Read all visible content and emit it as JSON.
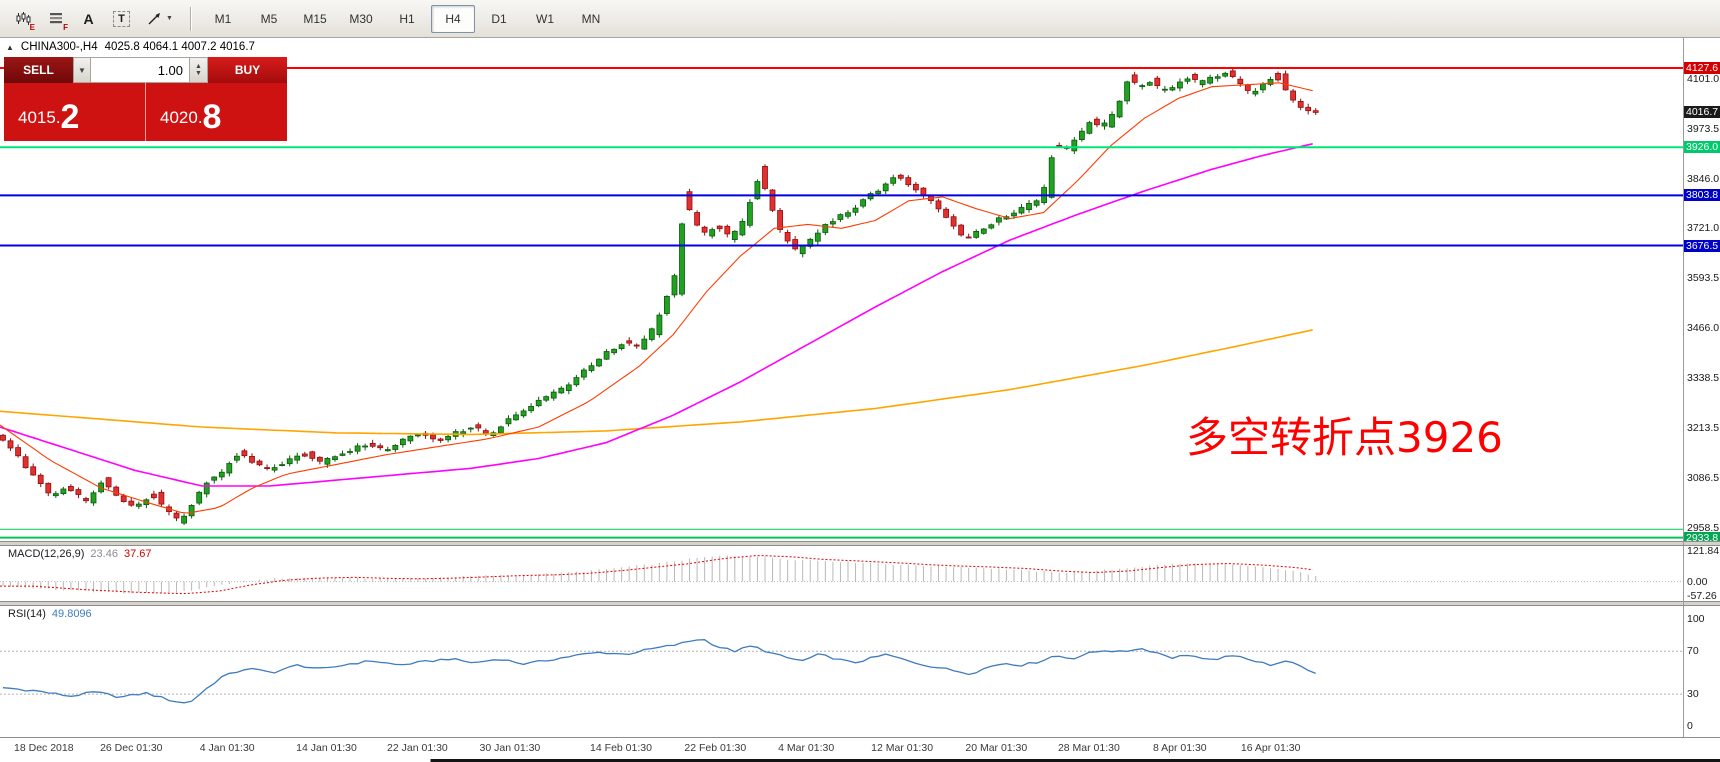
{
  "toolbar": {
    "timeframes": [
      "M1",
      "M5",
      "M15",
      "M30",
      "H1",
      "H4",
      "D1",
      "W1",
      "MN"
    ],
    "active_timeframe": "H4",
    "tool_icons": [
      {
        "name": "candlestick-tool-icon",
        "sub": "E"
      },
      {
        "name": "grid-tool-icon",
        "sub": "F"
      },
      {
        "name": "font-tool-icon",
        "label": "A"
      },
      {
        "name": "text-label-tool-icon",
        "label": "T"
      },
      {
        "name": "trendline-tool-icon",
        "caret": "▼"
      }
    ]
  },
  "icons": {
    "collapse_arrow": "▲",
    "dropdown_caret": "▼",
    "spinner_up": "▲",
    "spinner_down": "▼"
  },
  "header": {
    "symbol_period": "CHINA300-,H4",
    "ohlc_text": "4025.8 4064.1 4007.2 4016.7"
  },
  "trade_widget": {
    "sell_label": "SELL",
    "buy_label": "BUY",
    "volume": "1.00",
    "bid": "4015.2",
    "ask": "4020.8",
    "bid_main": "4015.",
    "bid_big": "2",
    "ask_main": "4020.",
    "ask_big": "8"
  },
  "chart_data": {
    "type": "candlestick",
    "symbol": "CHINA300-",
    "timeframe": "H4",
    "ohlc": {
      "open": 4025.8,
      "high": 4064.1,
      "low": 4007.2,
      "close": 4016.7
    },
    "annotations": [
      {
        "text": "多空转折点3926",
        "color": "#FF0000"
      }
    ],
    "price_axis": {
      "min": 2930,
      "max": 4160,
      "gridline_labels": [
        4101.0,
        3973.5,
        3846.0,
        3721.0,
        3593.5,
        3466.0,
        3338.5,
        3213.5,
        3086.5,
        2958.5
      ],
      "tags": [
        {
          "price": 4127.6,
          "label": "4127.6",
          "color": "#D40000"
        },
        {
          "price": 4016.7,
          "label": "4016.7",
          "color": "#1A1A1A"
        },
        {
          "price": 3926.0,
          "label": "3926.0",
          "color": "#00C96B"
        },
        {
          "price": 3803.8,
          "label": "3803.8",
          "color": "#0000C8"
        },
        {
          "price": 3676.5,
          "label": "3676.5",
          "color": "#0000C8"
        },
        {
          "price": 2933.8,
          "label": "2933.8",
          "color": "#00A651"
        }
      ]
    },
    "horizontal_lines": [
      {
        "price": 4127.6,
        "color": "#FF0000",
        "width": 2
      },
      {
        "price": 3926.0,
        "color": "#00E676",
        "width": 2
      },
      {
        "price": 3803.8,
        "color": "#0000E0",
        "width": 2
      },
      {
        "price": 3676.5,
        "color": "#0000E0",
        "width": 2
      },
      {
        "price": 2955.0,
        "color": "#00C853",
        "width": 1
      },
      {
        "price": 2933.8,
        "color": "#00C853",
        "width": 2
      }
    ],
    "candles": {
      "count": 175,
      "x_extent": 0.78,
      "up_color": "#21A121",
      "up_border": "#0B5A0B",
      "down_color": "#E23030",
      "down_border": "#8F0F0F"
    },
    "price_path": [
      [
        0.0,
        3190
      ],
      [
        0.01,
        3150
      ],
      [
        0.022,
        3085
      ],
      [
        0.032,
        3040
      ],
      [
        0.042,
        3065
      ],
      [
        0.052,
        3020
      ],
      [
        0.062,
        3080
      ],
      [
        0.072,
        3035
      ],
      [
        0.082,
        3010
      ],
      [
        0.092,
        3050
      ],
      [
        0.1,
        3000
      ],
      [
        0.108,
        2975
      ],
      [
        0.115,
        3020
      ],
      [
        0.125,
        3080
      ],
      [
        0.135,
        3110
      ],
      [
        0.142,
        3155
      ],
      [
        0.15,
        3130
      ],
      [
        0.16,
        3105
      ],
      [
        0.172,
        3130
      ],
      [
        0.182,
        3150
      ],
      [
        0.192,
        3125
      ],
      [
        0.205,
        3150
      ],
      [
        0.218,
        3170
      ],
      [
        0.23,
        3155
      ],
      [
        0.242,
        3185
      ],
      [
        0.252,
        3200
      ],
      [
        0.262,
        3180
      ],
      [
        0.272,
        3200
      ],
      [
        0.282,
        3215
      ],
      [
        0.292,
        3195
      ],
      [
        0.302,
        3230
      ],
      [
        0.312,
        3255
      ],
      [
        0.322,
        3285
      ],
      [
        0.335,
        3310
      ],
      [
        0.348,
        3355
      ],
      [
        0.36,
        3400
      ],
      [
        0.372,
        3430
      ],
      [
        0.38,
        3415
      ],
      [
        0.39,
        3470
      ],
      [
        0.398,
        3560
      ],
      [
        0.403,
        3600
      ],
      [
        0.408,
        3800
      ],
      [
        0.413,
        3740
      ],
      [
        0.42,
        3700
      ],
      [
        0.428,
        3730
      ],
      [
        0.436,
        3690
      ],
      [
        0.445,
        3760
      ],
      [
        0.452,
        3870
      ],
      [
        0.458,
        3790
      ],
      [
        0.465,
        3710
      ],
      [
        0.475,
        3660
      ],
      [
        0.485,
        3700
      ],
      [
        0.495,
        3740
      ],
      [
        0.505,
        3760
      ],
      [
        0.515,
        3795
      ],
      [
        0.525,
        3825
      ],
      [
        0.535,
        3855
      ],
      [
        0.545,
        3820
      ],
      [
        0.555,
        3785
      ],
      [
        0.565,
        3740
      ],
      [
        0.575,
        3695
      ],
      [
        0.585,
        3720
      ],
      [
        0.595,
        3745
      ],
      [
        0.605,
        3765
      ],
      [
        0.615,
        3785
      ],
      [
        0.622,
        3810
      ],
      [
        0.628,
        3940
      ],
      [
        0.635,
        3920
      ],
      [
        0.642,
        3955
      ],
      [
        0.65,
        3995
      ],
      [
        0.657,
        3975
      ],
      [
        0.665,
        4030
      ],
      [
        0.672,
        4105
      ],
      [
        0.678,
        4075
      ],
      [
        0.685,
        4100
      ],
      [
        0.692,
        4065
      ],
      [
        0.7,
        4085
      ],
      [
        0.707,
        4110
      ],
      [
        0.714,
        4085
      ],
      [
        0.722,
        4105
      ],
      [
        0.73,
        4115
      ],
      [
        0.738,
        4085
      ],
      [
        0.745,
        4060
      ],
      [
        0.752,
        4090
      ],
      [
        0.76,
        4115
      ],
      [
        0.767,
        4060
      ],
      [
        0.773,
        4030
      ],
      [
        0.78,
        4017
      ]
    ],
    "ma_fast": {
      "color": "#FF3C00",
      "points": [
        [
          0.0,
          3220
        ],
        [
          0.03,
          3130
        ],
        [
          0.06,
          3060
        ],
        [
          0.09,
          3020
        ],
        [
          0.11,
          2995
        ],
        [
          0.13,
          3010
        ],
        [
          0.15,
          3060
        ],
        [
          0.17,
          3095
        ],
        [
          0.2,
          3120
        ],
        [
          0.23,
          3145
        ],
        [
          0.26,
          3165
        ],
        [
          0.29,
          3185
        ],
        [
          0.32,
          3215
        ],
        [
          0.35,
          3280
        ],
        [
          0.38,
          3370
        ],
        [
          0.4,
          3450
        ],
        [
          0.42,
          3560
        ],
        [
          0.44,
          3650
        ],
        [
          0.46,
          3720
        ],
        [
          0.48,
          3730
        ],
        [
          0.5,
          3720
        ],
        [
          0.52,
          3740
        ],
        [
          0.54,
          3790
        ],
        [
          0.56,
          3800
        ],
        [
          0.58,
          3770
        ],
        [
          0.6,
          3745
        ],
        [
          0.62,
          3760
        ],
        [
          0.64,
          3840
        ],
        [
          0.66,
          3930
        ],
        [
          0.68,
          4000
        ],
        [
          0.7,
          4050
        ],
        [
          0.72,
          4080
        ],
        [
          0.74,
          4085
        ],
        [
          0.76,
          4090
        ],
        [
          0.78,
          4070
        ]
      ]
    },
    "ma_mid": {
      "color": "#FF00FF",
      "points": [
        [
          0.0,
          3215
        ],
        [
          0.04,
          3160
        ],
        [
          0.08,
          3105
        ],
        [
          0.12,
          3065
        ],
        [
          0.16,
          3065
        ],
        [
          0.2,
          3080
        ],
        [
          0.24,
          3095
        ],
        [
          0.28,
          3110
        ],
        [
          0.32,
          3135
        ],
        [
          0.36,
          3175
        ],
        [
          0.4,
          3245
        ],
        [
          0.44,
          3330
        ],
        [
          0.48,
          3425
        ],
        [
          0.52,
          3520
        ],
        [
          0.56,
          3610
        ],
        [
          0.6,
          3690
        ],
        [
          0.64,
          3755
        ],
        [
          0.68,
          3815
        ],
        [
          0.72,
          3870
        ],
        [
          0.75,
          3905
        ],
        [
          0.78,
          3935
        ]
      ]
    },
    "ma_slow": {
      "color": "#FFA500",
      "points": [
        [
          0.0,
          3255
        ],
        [
          0.06,
          3235
        ],
        [
          0.12,
          3215
        ],
        [
          0.2,
          3200
        ],
        [
          0.28,
          3196
        ],
        [
          0.36,
          3205
        ],
        [
          0.44,
          3228
        ],
        [
          0.52,
          3262
        ],
        [
          0.6,
          3310
        ],
        [
          0.68,
          3372
        ],
        [
          0.74,
          3425
        ],
        [
          0.78,
          3462
        ]
      ]
    },
    "date_axis": [
      {
        "label": "18 Dec 2018",
        "x": 0.026
      },
      {
        "label": "26 Dec 01:30",
        "x": 0.078
      },
      {
        "label": "4 Jan 01:30",
        "x": 0.135
      },
      {
        "label": "14 Jan 01:30",
        "x": 0.194
      },
      {
        "label": "22 Jan 01:30",
        "x": 0.248
      },
      {
        "label": "30 Jan 01:30",
        "x": 0.303
      },
      {
        "label": "14 Feb 01:30",
        "x": 0.369
      },
      {
        "label": "22 Feb 01:30",
        "x": 0.425
      },
      {
        "label": "4 Mar 01:30",
        "x": 0.479
      },
      {
        "label": "12 Mar 01:30",
        "x": 0.536
      },
      {
        "label": "20 Mar 01:30",
        "x": 0.592
      },
      {
        "label": "28 Mar 01:30",
        "x": 0.647
      },
      {
        "label": "8 Apr 01:30",
        "x": 0.701
      },
      {
        "label": "16 Apr 01:30",
        "x": 0.755
      }
    ],
    "macd": {
      "label": "MACD(12,26,9)",
      "value_main": "23.46",
      "value_signal": "37.67",
      "axis": [
        121.84,
        0.0,
        -57.26
      ],
      "hist_color": "#B8B8B8",
      "signal_color": "#E00000",
      "points": [
        [
          0.0,
          -18
        ],
        [
          0.03,
          -32
        ],
        [
          0.06,
          -42
        ],
        [
          0.09,
          -48
        ],
        [
          0.11,
          -38
        ],
        [
          0.13,
          -12
        ],
        [
          0.15,
          6
        ],
        [
          0.17,
          14
        ],
        [
          0.19,
          17
        ],
        [
          0.21,
          13
        ],
        [
          0.23,
          11
        ],
        [
          0.25,
          14
        ],
        [
          0.27,
          19
        ],
        [
          0.29,
          24
        ],
        [
          0.31,
          27
        ],
        [
          0.33,
          33
        ],
        [
          0.35,
          44
        ],
        [
          0.37,
          58
        ],
        [
          0.39,
          72
        ],
        [
          0.41,
          92
        ],
        [
          0.43,
          104
        ],
        [
          0.45,
          99
        ],
        [
          0.47,
          88
        ],
        [
          0.49,
          82
        ],
        [
          0.51,
          76
        ],
        [
          0.53,
          68
        ],
        [
          0.55,
          62
        ],
        [
          0.57,
          58
        ],
        [
          0.59,
          52
        ],
        [
          0.61,
          42
        ],
        [
          0.63,
          36
        ],
        [
          0.65,
          42
        ],
        [
          0.67,
          56
        ],
        [
          0.69,
          68
        ],
        [
          0.71,
          72
        ],
        [
          0.73,
          66
        ],
        [
          0.75,
          56
        ],
        [
          0.77,
          38
        ],
        [
          0.78,
          23.46
        ]
      ]
    },
    "rsi": {
      "label": "RSI(14)",
      "value": "49.8096",
      "axis": [
        100,
        70,
        30,
        0
      ],
      "levels": [
        70,
        30
      ],
      "color": "#3E7BBF",
      "points": [
        [
          0.0,
          36
        ],
        [
          0.02,
          33
        ],
        [
          0.04,
          28
        ],
        [
          0.055,
          32
        ],
        [
          0.07,
          27
        ],
        [
          0.085,
          31
        ],
        [
          0.1,
          24
        ],
        [
          0.11,
          21
        ],
        [
          0.12,
          34
        ],
        [
          0.13,
          46
        ],
        [
          0.145,
          54
        ],
        [
          0.16,
          50
        ],
        [
          0.175,
          57
        ],
        [
          0.19,
          53
        ],
        [
          0.205,
          58
        ],
        [
          0.22,
          61
        ],
        [
          0.235,
          57
        ],
        [
          0.25,
          60
        ],
        [
          0.265,
          63
        ],
        [
          0.28,
          59
        ],
        [
          0.295,
          63
        ],
        [
          0.31,
          58
        ],
        [
          0.325,
          62
        ],
        [
          0.34,
          66
        ],
        [
          0.355,
          69
        ],
        [
          0.37,
          67
        ],
        [
          0.385,
          72
        ],
        [
          0.4,
          76
        ],
        [
          0.415,
          82
        ],
        [
          0.425,
          74
        ],
        [
          0.435,
          70
        ],
        [
          0.445,
          75
        ],
        [
          0.455,
          69
        ],
        [
          0.465,
          64
        ],
        [
          0.475,
          61
        ],
        [
          0.485,
          67
        ],
        [
          0.495,
          63
        ],
        [
          0.505,
          59
        ],
        [
          0.515,
          63
        ],
        [
          0.525,
          67
        ],
        [
          0.535,
          62
        ],
        [
          0.545,
          58
        ],
        [
          0.555,
          55
        ],
        [
          0.565,
          52
        ],
        [
          0.575,
          49
        ],
        [
          0.585,
          55
        ],
        [
          0.595,
          59
        ],
        [
          0.605,
          57
        ],
        [
          0.615,
          60
        ],
        [
          0.625,
          66
        ],
        [
          0.635,
          63
        ],
        [
          0.645,
          68
        ],
        [
          0.655,
          71
        ],
        [
          0.665,
          69
        ],
        [
          0.675,
          73
        ],
        [
          0.685,
          69
        ],
        [
          0.695,
          64
        ],
        [
          0.705,
          67
        ],
        [
          0.715,
          61
        ],
        [
          0.725,
          64
        ],
        [
          0.735,
          66
        ],
        [
          0.745,
          60
        ],
        [
          0.755,
          57
        ],
        [
          0.765,
          61
        ],
        [
          0.775,
          53
        ],
        [
          0.78,
          49.8
        ]
      ]
    }
  }
}
